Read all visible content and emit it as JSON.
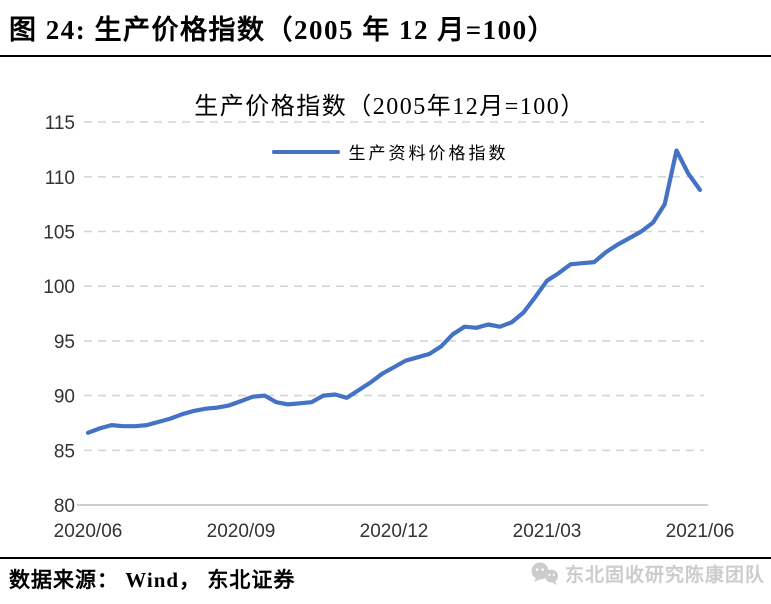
{
  "header": {
    "title": "图 24: 生产价格指数（2005 年 12 月=100）"
  },
  "chart_data": {
    "type": "line",
    "title": "生产价格指数（2005年12月=100）",
    "legend_position": "top-center",
    "grid": "horizontal-dashed",
    "ylim": [
      80,
      115
    ],
    "ytick_step": 5,
    "x_tick_labels": [
      "2020/06",
      "2020/09",
      "2020/12",
      "2021/03",
      "2021/06"
    ],
    "x_frequency": "weekly",
    "series": [
      {
        "name": "生产资料价格指数",
        "color": "#4472C4",
        "values": [
          86.6,
          87.0,
          87.3,
          87.2,
          87.2,
          87.3,
          87.6,
          87.9,
          88.3,
          88.6,
          88.8,
          88.9,
          89.1,
          89.5,
          89.9,
          90.0,
          89.4,
          89.2,
          89.3,
          89.4,
          90.0,
          90.1,
          89.8,
          90.5,
          91.2,
          92.0,
          92.6,
          93.2,
          93.5,
          93.8,
          94.5,
          95.6,
          96.3,
          96.2,
          96.5,
          96.3,
          96.7,
          97.6,
          99.0,
          100.5,
          101.2,
          102.0,
          102.1,
          102.2,
          103.1,
          103.8,
          104.4,
          105.0,
          105.8,
          107.5,
          112.4,
          110.3,
          108.8
        ]
      }
    ]
  },
  "footer": {
    "source_label": "数据来源： Wind， 东北证券",
    "watermark_label": "东北固收研究陈康团队"
  },
  "icons": {
    "watermark_icon": "wechat-chat-bubbles-icon"
  },
  "colors": {
    "line": "#4472C4",
    "gridline": "#D5D5D5",
    "axis_line": "#C6C6C6",
    "tick_label": "#333333",
    "watermark": "#CCCCCC",
    "rule": "#000000"
  }
}
